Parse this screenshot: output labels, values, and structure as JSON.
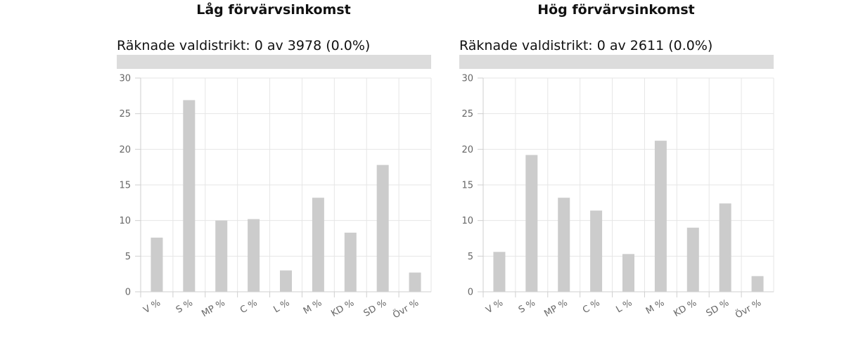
{
  "chart_data": [
    {
      "type": "bar",
      "title": "Låg förvärvsinkomst",
      "progress_label": "Räknade valdistrikt: 0 av 3978 (0.0%)",
      "progress": 0.0,
      "categories": [
        "V %",
        "S %",
        "MP %",
        "C %",
        "L %",
        "M %",
        "KD %",
        "SD %",
        "Övr %"
      ],
      "values": [
        7.6,
        26.9,
        10.0,
        10.2,
        3.0,
        13.2,
        8.3,
        17.8,
        2.7
      ],
      "ylim": [
        0,
        30
      ],
      "yticks": [
        "0",
        "5",
        "10",
        "15",
        "20",
        "25",
        "30"
      ],
      "grid": true,
      "bar_color": "#cccccc"
    },
    {
      "type": "bar",
      "title": "Hög förvärvsinkomst",
      "progress_label": "Räknade valdistrikt: 0 av 2611 (0.0%)",
      "progress": 0.0,
      "categories": [
        "V %",
        "S %",
        "MP %",
        "C %",
        "L %",
        "M %",
        "KD %",
        "SD %",
        "Övr %"
      ],
      "values": [
        5.6,
        19.2,
        13.2,
        11.4,
        5.3,
        21.2,
        9.0,
        12.4,
        2.2
      ],
      "ylim": [
        0,
        30
      ],
      "yticks": [
        "0",
        "5",
        "10",
        "15",
        "20",
        "25",
        "30"
      ],
      "grid": true,
      "bar_color": "#cccccc"
    }
  ]
}
